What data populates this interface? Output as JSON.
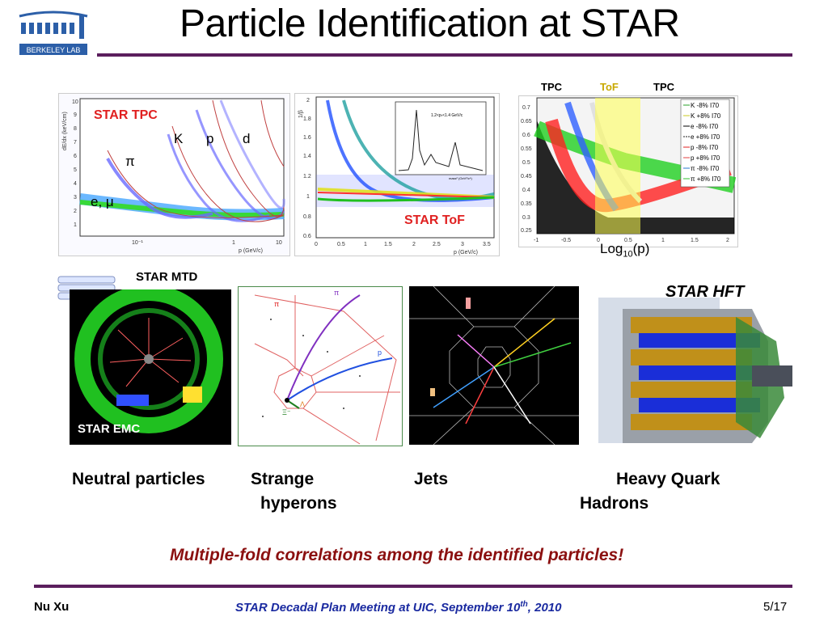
{
  "slide": {
    "title": "Particle Identification at STAR",
    "logo_text": "BERKELEY LAB",
    "tagline": "Multiple-fold correlations among the identified particles!",
    "footer": {
      "author": "Nu Xu",
      "meeting_pre": "STAR Decadal Plan Meeting at UIC, September 10",
      "meeting_sup": "th",
      "meeting_post": ", 2010",
      "page": "5/17"
    }
  },
  "tpc_plot": {
    "label": "STAR TPC",
    "yaxis": "dE/dx (keV/cm)",
    "xaxis": "p (GeV/c)",
    "yticks": [
      "10",
      "9",
      "8",
      "7",
      "6",
      "5",
      "4",
      "3",
      "2",
      "1"
    ],
    "xticks": [
      "10⁻¹",
      "1",
      "10"
    ],
    "species": {
      "k": "K",
      "p": "p",
      "d": "d",
      "pi": "π",
      "e": "e, μ"
    }
  },
  "tof_plot": {
    "label": "STAR ToF",
    "yaxis": "1/β",
    "xaxis": "p (GeV/c)",
    "yticks": [
      "2",
      "1.8",
      "1.6",
      "1.4",
      "1.2",
      "1",
      "0.8",
      "0.6"
    ],
    "xticks": [
      "0",
      "0.5",
      "1",
      "1.5",
      "2",
      "2.5",
      "3",
      "3.5"
    ],
    "inset_label": "1.2<pₜ<1.4 GeV/c",
    "inset_xaxis": "mass² (GeV²/c⁴)"
  },
  "dedx_plot": {
    "top_labels": [
      "TPC",
      "ToF",
      "TPC"
    ],
    "xaxis_base": "Log",
    "xaxis_sub": "10",
    "xaxis_tail": "(p)",
    "yticks": [
      "0.7",
      "0.65",
      "0.6",
      "0.55",
      "0.5",
      "0.45",
      "0.4",
      "0.35",
      "0.3",
      "0.25"
    ],
    "xticks": [
      "-1",
      "-0.5",
      "0",
      "0.5",
      "1",
      "1.5",
      "2"
    ],
    "legend": [
      "K -8% I70",
      "K +8% I70",
      "e -8% I70",
      "e +8% I70",
      "p -8% I70",
      "p +8% I70",
      "π -8% I70",
      "π +8% I70"
    ],
    "colors": [
      "#2aa02a",
      "#c8c820",
      "#000000",
      "#222222",
      "#e02020",
      "#e04040",
      "#2a7ad0",
      "#30c030"
    ]
  },
  "detectors": {
    "mtd_label": "STAR MTD",
    "emc_label": "STAR EMC",
    "hft_label": "STAR HFT",
    "event_labels": {
      "pi1": "π",
      "pi2": "π",
      "p": "p",
      "lambda": "Λ",
      "xi": "Ξ⁻"
    }
  },
  "captions": {
    "neutral": "Neutral particles",
    "strange_1": "Strange",
    "strange_2": "hyperons",
    "jets": "Jets",
    "hq_1": "Heavy Quark",
    "hq_2": "Hadrons"
  }
}
